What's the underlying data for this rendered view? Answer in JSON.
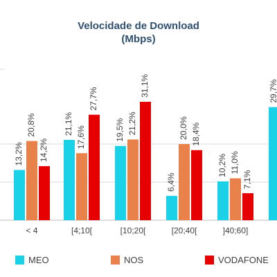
{
  "chart_data": {
    "type": "bar",
    "title": "Velocidade de Download",
    "subtitle": "(Mbps)",
    "categories": [
      "< 4",
      "[4;10[",
      "[10;20[",
      "[20;40[",
      "]40;60]",
      ""
    ],
    "series": [
      {
        "name": "MEO",
        "color": "#1ad1e8",
        "values": [
          13.2,
          21.1,
          19.5,
          6.4,
          10.2,
          29.7
        ],
        "labels": [
          "13,2%",
          "21,1%",
          "19,5%",
          "6,4%",
          "10,2%",
          "29,7%"
        ]
      },
      {
        "name": "NOS",
        "color": "#e9824a",
        "values": [
          20.8,
          17.6,
          21.2,
          20.0,
          11.0,
          null
        ],
        "labels": [
          "20,8%",
          "17,6%",
          "21,2%",
          "20,0%",
          "11,0%",
          ""
        ]
      },
      {
        "name": "VODAFONE",
        "color": "#e60000",
        "values": [
          14.2,
          27.7,
          31.1,
          18.4,
          7.1,
          null
        ],
        "labels": [
          "14,2%",
          "27,7%",
          "31,1%",
          "18,4%",
          "7,1%",
          ""
        ]
      }
    ],
    "ylim": [
      0,
      40
    ],
    "grid": true,
    "legend_position": "bottom"
  }
}
